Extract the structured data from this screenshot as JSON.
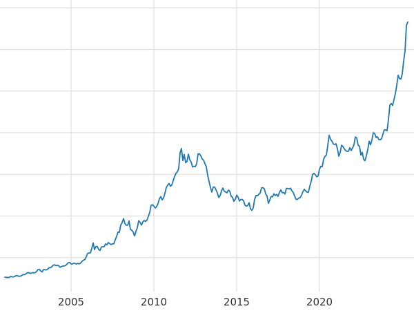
{
  "figure": {
    "background": "#ffffff",
    "line_color": "#1f77b4",
    "grid_color": "#d9d9d9",
    "tick_label_color": "#333333",
    "tick_label_size": 15
  },
  "chart_data": {
    "type": "line",
    "title": "",
    "xlabel": "",
    "ylabel": "",
    "grid": true,
    "legend": "none",
    "x_ticks": [
      2005,
      2010,
      2015,
      2020
    ],
    "x_tick_labels": [
      "2005",
      "2010",
      "2015",
      "2020"
    ],
    "y_gridline_values": [
      500,
      1000,
      1500,
      2000,
      2500,
      3000,
      3500
    ],
    "xlim": [
      2000.708,
      2025.708
    ],
    "ylim": [
      91,
      3594
    ],
    "series": [
      {
        "name": "price",
        "x_start": 2001.0,
        "x_step": 0.0833333,
        "values": [
          265,
          261,
          263,
          260,
          272,
          270,
          267,
          272,
          283,
          283,
          276,
          276,
          281,
          295,
          294,
          302,
          314,
          321,
          313,
          310,
          319,
          317,
          319,
          333,
          356,
          359,
          340,
          328,
          355,
          356,
          351,
          360,
          379,
          379,
          389,
          407,
          414,
          405,
          407,
          403,
          383,
          392,
          398,
          400,
          405,
          420,
          439,
          442,
          424,
          423,
          434,
          429,
          422,
          431,
          424,
          437,
          456,
          470,
          477,
          510,
          550,
          555,
          557,
          611,
          676,
          596,
          634,
          632,
          599,
          586,
          628,
          630,
          631,
          665,
          655,
          680,
          667,
          656,
          665,
          666,
          713,
          755,
          806,
          804,
          890,
          922,
          968,
          910,
          889,
          889,
          940,
          839,
          830,
          807,
          761,
          816,
          858,
          943,
          924,
          890,
          929,
          946,
          934,
          950,
          996,
          1043,
          1127,
          1135,
          1118,
          1095,
          1113,
          1149,
          1205,
          1233,
          1193,
          1216,
          1271,
          1342,
          1370,
          1391,
          1356,
          1373,
          1424,
          1474,
          1511,
          1529,
          1573,
          1757,
          1810,
          1666,
          1739,
          1641,
          1654,
          1743,
          1674,
          1650,
          1589,
          1598,
          1593,
          1626,
          1745,
          1747,
          1722,
          1685,
          1671,
          1628,
          1593,
          1487,
          1414,
          1343,
          1287,
          1347,
          1348,
          1316,
          1276,
          1222,
          1244,
          1300,
          1336,
          1299,
          1288,
          1279,
          1311,
          1296,
          1237,
          1223,
          1176,
          1201,
          1250,
          1227,
          1179,
          1198,
          1199,
          1181,
          1130,
          1118,
          1125,
          1159,
          1086,
          1068,
          1097,
          1200,
          1246,
          1242,
          1260,
          1276,
          1337,
          1340,
          1327,
          1267,
          1238,
          1152,
          1192,
          1234,
          1231,
          1266,
          1246,
          1260,
          1236,
          1283,
          1314,
          1280,
          1282,
          1264,
          1331,
          1330,
          1325,
          1334,
          1303,
          1281,
          1238,
          1201,
          1198,
          1215,
          1221,
          1250,
          1292,
          1320,
          1301,
          1286,
          1284,
          1359,
          1413,
          1499,
          1511,
          1495,
          1471,
          1480,
          1561,
          1597,
          1592,
          1683,
          1716,
          1732,
          1843,
          1969,
          1922,
          1900,
          1866,
          1858,
          1867,
          1808,
          1718,
          1762,
          1850,
          1835,
          1807,
          1784,
          1777,
          1777,
          1820,
          1787,
          1817,
          1856,
          1948,
          1937,
          1850,
          1836,
          1732,
          1765,
          1681,
          1664,
          1725,
          1797,
          1898,
          1855,
          1913,
          2000,
          1992,
          1943,
          1951,
          1918,
          1915,
          1929,
          1984,
          2034,
          2034,
          2024,
          2160,
          2331,
          2351,
          2327,
          2398,
          2470,
          2568,
          2690,
          2651,
          2644,
          2708,
          2860,
          2984,
          3290,
          3330
        ]
      }
    ]
  }
}
